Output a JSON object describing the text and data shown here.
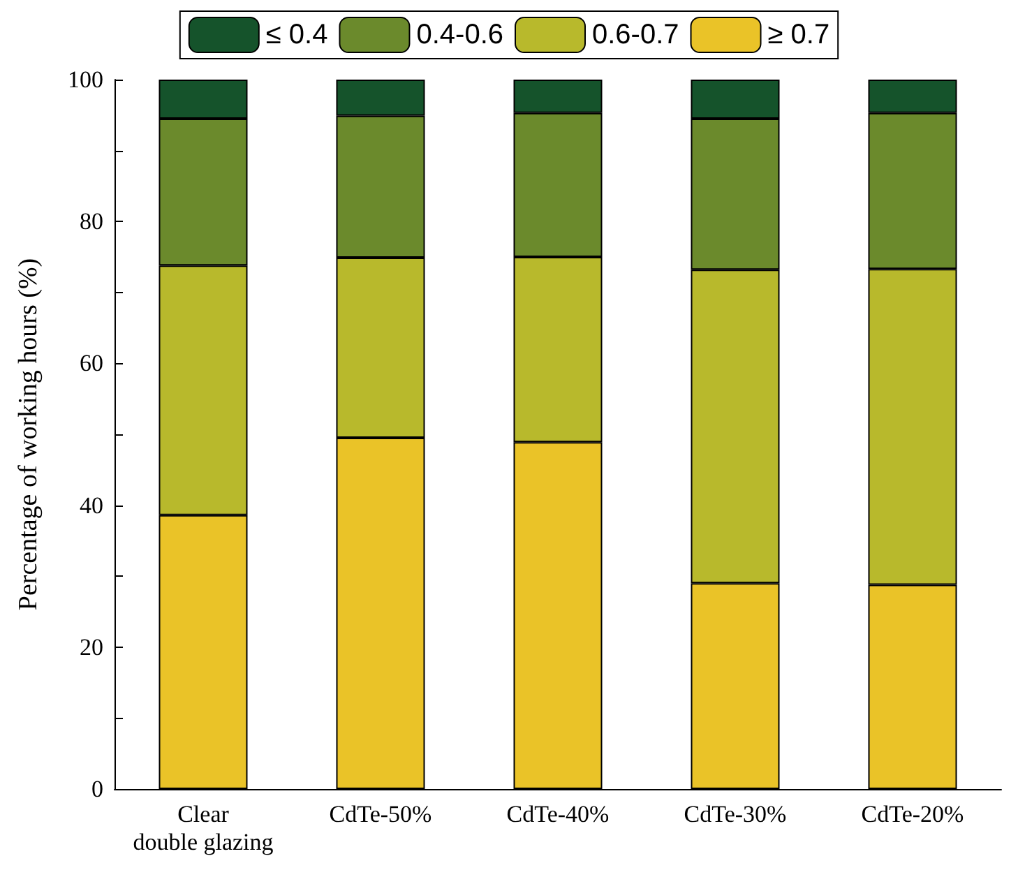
{
  "chart_data": {
    "type": "bar",
    "stacked": true,
    "ylabel": "Percentage of working hours (%)",
    "categories": [
      "Clear\ndouble glazing",
      "CdTe-50%",
      "CdTe-40%",
      "CdTe-30%",
      "CdTe-20%"
    ],
    "series": [
      {
        "name": "≥ 0.7",
        "color": "#eac328",
        "values": [
          38.6,
          49.5,
          48.9,
          29.0,
          28.8
        ]
      },
      {
        "name": "0.6-0.7",
        "color": "#b8b92c",
        "values": [
          35.2,
          25.4,
          26.1,
          44.2,
          44.5
        ]
      },
      {
        "name": "0.4-0.6",
        "color": "#6b8a2c",
        "values": [
          20.7,
          20.0,
          20.3,
          21.3,
          22.0
        ]
      },
      {
        "name": "≤ 0.4",
        "color": "#15532b",
        "values": [
          5.5,
          5.1,
          4.7,
          5.5,
          4.7
        ]
      }
    ],
    "ylim": [
      0,
      100
    ],
    "yticks": [
      0,
      {
        "value": 10,
        "label": null
      },
      20,
      {
        "value": 30,
        "label": null
      },
      40,
      {
        "value": 50,
        "label": null
      },
      60,
      {
        "value": 70,
        "label": null
      },
      80,
      {
        "value": 90,
        "label": null
      },
      100
    ],
    "grid": false,
    "legend": "top"
  }
}
